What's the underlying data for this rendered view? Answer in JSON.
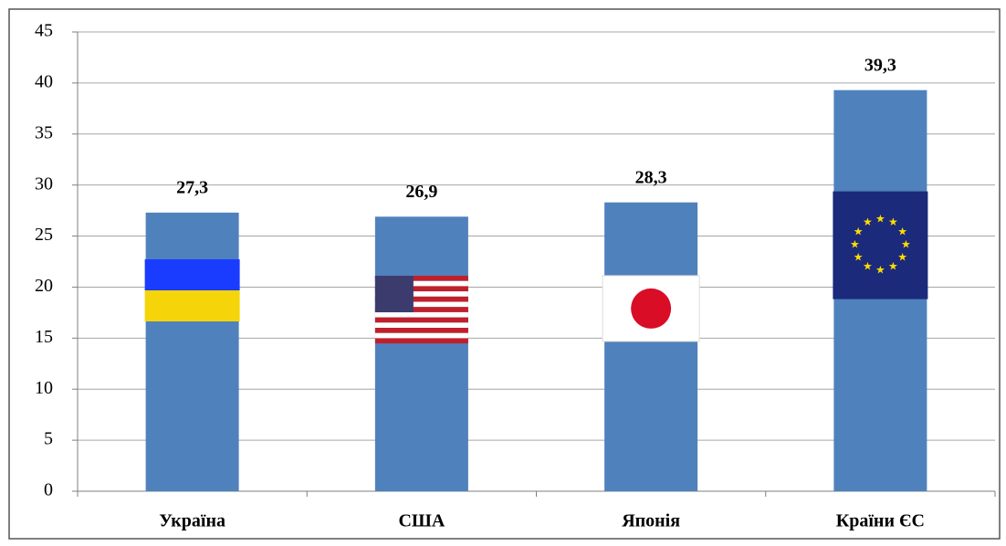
{
  "chart_data": {
    "type": "bar",
    "categories": [
      "Україна",
      "США",
      "Японія",
      "Країни ЄС"
    ],
    "values": [
      27.3,
      26.9,
      28.3,
      39.3
    ],
    "value_labels": [
      "27,3",
      "26,9",
      "28,3",
      "39,3"
    ],
    "color": "#4f81bd",
    "ylim": [
      0,
      45
    ],
    "yticks": [
      0,
      5,
      10,
      15,
      20,
      25,
      30,
      35,
      40,
      45
    ],
    "grid": true
  }
}
